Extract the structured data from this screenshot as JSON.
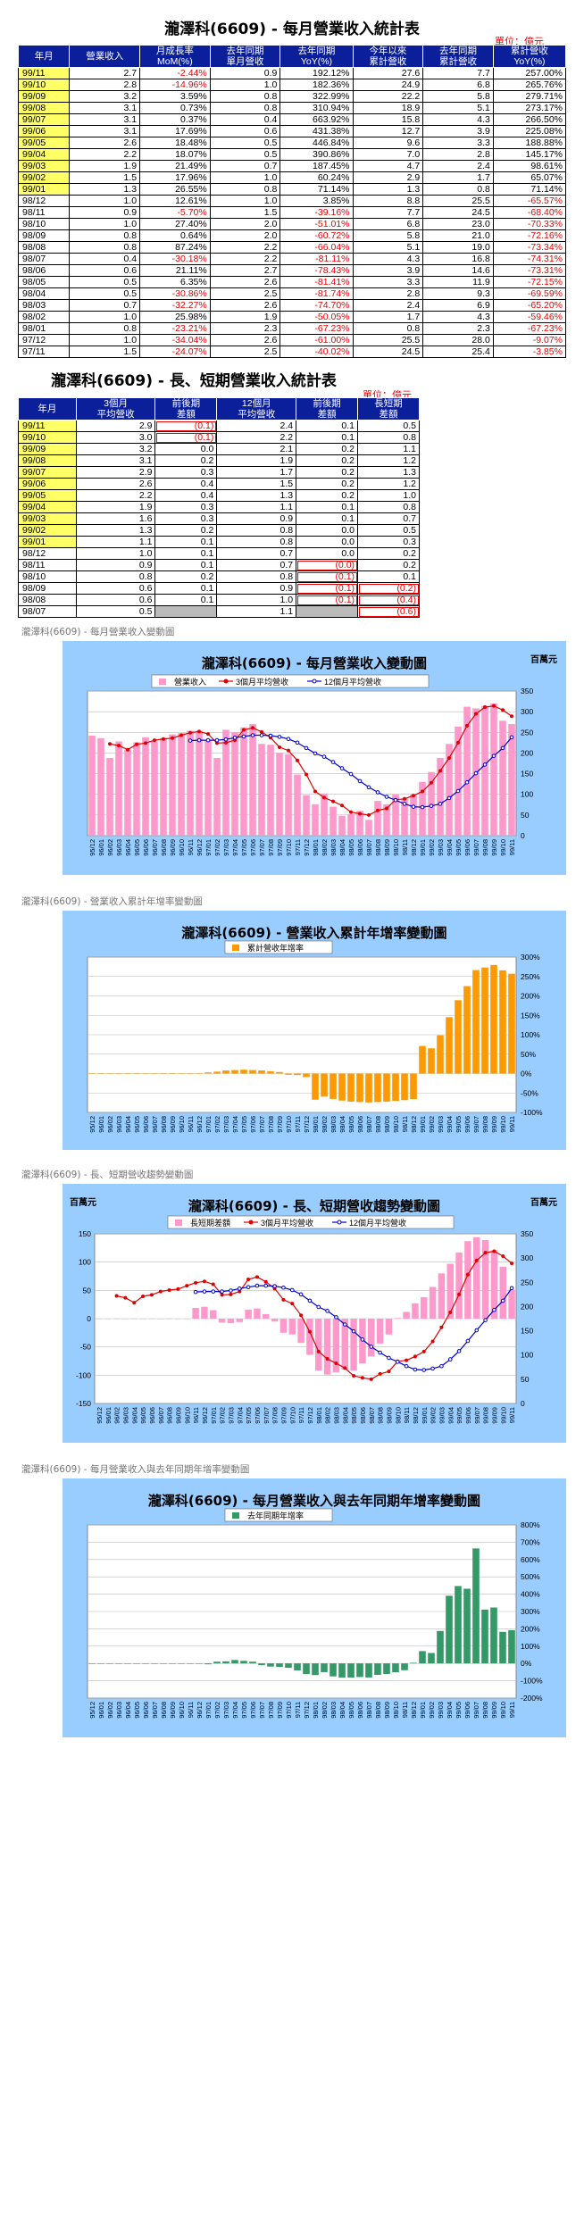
{
  "table1": {
    "title": "瀧澤科(6609) - 每月營業收入統計表",
    "unit": "單位：億元",
    "headers": [
      "年月",
      "營業收入",
      "月成長率\nMoM(%)",
      "去年同期\n單月營收",
      "去年同期\nYoY(%)",
      "今年以來\n累計營收",
      "去年同期\n累計營收",
      "累計營收\nYoY(%)"
    ],
    "rows": [
      [
        "99/11",
        "2.7",
        "-2.44%",
        "0.9",
        "192.12%",
        "27.6",
        "7.7",
        "257.00%"
      ],
      [
        "99/10",
        "2.8",
        "-14.96%",
        "1.0",
        "182.36%",
        "24.9",
        "6.8",
        "265.76%"
      ],
      [
        "99/09",
        "3.2",
        "3.59%",
        "0.8",
        "322.99%",
        "22.2",
        "5.8",
        "279.71%"
      ],
      [
        "99/08",
        "3.1",
        "0.73%",
        "0.8",
        "310.94%",
        "18.9",
        "5.1",
        "273.17%"
      ],
      [
        "99/07",
        "3.1",
        "0.37%",
        "0.4",
        "663.92%",
        "15.8",
        "4.3",
        "266.50%"
      ],
      [
        "99/06",
        "3.1",
        "17.69%",
        "0.6",
        "431.38%",
        "12.7",
        "3.9",
        "225.08%"
      ],
      [
        "99/05",
        "2.6",
        "18.48%",
        "0.5",
        "446.84%",
        "9.6",
        "3.3",
        "188.88%"
      ],
      [
        "99/04",
        "2.2",
        "18.07%",
        "0.5",
        "390.86%",
        "7.0",
        "2.8",
        "145.17%"
      ],
      [
        "99/03",
        "1.9",
        "21.49%",
        "0.7",
        "187.45%",
        "4.7",
        "2.4",
        "98.61%"
      ],
      [
        "99/02",
        "1.5",
        "17.96%",
        "1.0",
        "60.24%",
        "2.9",
        "1.7",
        "65.07%"
      ],
      [
        "99/01",
        "1.3",
        "26.55%",
        "0.8",
        "71.14%",
        "1.3",
        "0.8",
        "71.14%"
      ],
      [
        "98/12",
        "1.0",
        "12.61%",
        "1.0",
        "3.85%",
        "8.8",
        "25.5",
        "-65.57%"
      ],
      [
        "98/11",
        "0.9",
        "-5.70%",
        "1.5",
        "-39.16%",
        "7.7",
        "24.5",
        "-68.40%"
      ],
      [
        "98/10",
        "1.0",
        "27.40%",
        "2.0",
        "-51.01%",
        "6.8",
        "23.0",
        "-70.33%"
      ],
      [
        "98/09",
        "0.8",
        "0.64%",
        "2.0",
        "-60.72%",
        "5.8",
        "21.0",
        "-72.16%"
      ],
      [
        "98/08",
        "0.8",
        "87.24%",
        "2.2",
        "-66.04%",
        "5.1",
        "19.0",
        "-73.34%"
      ],
      [
        "98/07",
        "0.4",
        "-30.18%",
        "2.2",
        "-81.11%",
        "4.3",
        "16.8",
        "-74.31%"
      ],
      [
        "98/06",
        "0.6",
        "21.11%",
        "2.7",
        "-78.43%",
        "3.9",
        "14.6",
        "-73.31%"
      ],
      [
        "98/05",
        "0.5",
        "6.35%",
        "2.6",
        "-81.41%",
        "3.3",
        "11.9",
        "-72.15%"
      ],
      [
        "98/04",
        "0.5",
        "-30.86%",
        "2.5",
        "-81.74%",
        "2.8",
        "9.3",
        "-69.59%"
      ],
      [
        "98/03",
        "0.7",
        "-32.27%",
        "2.6",
        "-74.70%",
        "2.4",
        "6.9",
        "-65.20%"
      ],
      [
        "98/02",
        "1.0",
        "25.98%",
        "1.9",
        "-50.05%",
        "1.7",
        "4.3",
        "-59.46%"
      ],
      [
        "98/01",
        "0.8",
        "-23.21%",
        "2.3",
        "-67.23%",
        "0.8",
        "2.3",
        "-67.23%"
      ],
      [
        "97/12",
        "1.0",
        "-34.04%",
        "2.6",
        "-61.00%",
        "25.5",
        "28.0",
        "-9.07%"
      ],
      [
        "97/11",
        "1.5",
        "-24.07%",
        "2.5",
        "-40.02%",
        "24.5",
        "25.4",
        "-3.85%"
      ]
    ]
  },
  "table2": {
    "title": "瀧澤科(6609) - 長、短期營業收入統計表",
    "unit": "單位：億元",
    "headers": [
      "年月",
      "3個月\n平均營收",
      "前後期\n差額",
      "12個月\n平均營收",
      "前後期\n差額",
      "長短期\n差額"
    ],
    "rows": [
      [
        "99/11",
        "2.9",
        "(0.1)",
        "2.4",
        "0.1",
        "0.5"
      ],
      [
        "99/10",
        "3.0",
        "(0.1)",
        "2.2",
        "0.1",
        "0.8"
      ],
      [
        "99/09",
        "3.2",
        "0.0",
        "2.1",
        "0.2",
        "1.1"
      ],
      [
        "99/08",
        "3.1",
        "0.2",
        "1.9",
        "0.2",
        "1.2"
      ],
      [
        "99/07",
        "2.9",
        "0.3",
        "1.7",
        "0.2",
        "1.3"
      ],
      [
        "99/06",
        "2.6",
        "0.4",
        "1.5",
        "0.2",
        "1.2"
      ],
      [
        "99/05",
        "2.2",
        "0.4",
        "1.3",
        "0.2",
        "1.0"
      ],
      [
        "99/04",
        "1.9",
        "0.3",
        "1.1",
        "0.1",
        "0.8"
      ],
      [
        "99/03",
        "1.6",
        "0.3",
        "0.9",
        "0.1",
        "0.7"
      ],
      [
        "99/02",
        "1.3",
        "0.2",
        "0.8",
        "0.0",
        "0.5"
      ],
      [
        "99/01",
        "1.1",
        "0.1",
        "0.8",
        "0.0",
        "0.3"
      ],
      [
        "98/12",
        "1.0",
        "0.1",
        "0.7",
        "0.0",
        "0.2"
      ],
      [
        "98/11",
        "0.9",
        "0.1",
        "0.7",
        "(0.0)",
        "0.2"
      ],
      [
        "98/10",
        "0.8",
        "0.2",
        "0.8",
        "(0.1)",
        "0.1"
      ],
      [
        "98/09",
        "0.6",
        "0.1",
        "0.9",
        "(0.1)",
        "(0.2)"
      ],
      [
        "98/08",
        "0.6",
        "0.1",
        "1.0",
        "(0.1)",
        "(0.4)"
      ],
      [
        "98/07",
        "0.5",
        "",
        "1.1",
        "",
        "(0.6)"
      ]
    ]
  },
  "section_labels": [
    "瀧澤科(6609) - 每月營業收入變動圖",
    "瀧澤科(6609) - 營業收入累計年增率變動圖",
    "瀧澤科(6609) - 長、短期營收趨勢變動圖",
    "瀧澤科(6609) - 每月營業收入與去年同期年增率變動圖"
  ],
  "chart_data": [
    {
      "type": "bar",
      "title": "瀧澤科(6609) - 每月營業收入變動圖",
      "unit_label": "百萬元",
      "categories": [
        "95/12",
        "96/01",
        "96/02",
        "96/03",
        "96/04",
        "96/05",
        "96/06",
        "96/07",
        "96/08",
        "96/09",
        "96/10",
        "96/11",
        "96/12",
        "97/01",
        "97/02",
        "97/03",
        "97/04",
        "97/05",
        "97/06",
        "97/07",
        "97/08",
        "97/09",
        "97/10",
        "97/11",
        "97/12",
        "98/01",
        "98/02",
        "98/03",
        "98/04",
        "98/05",
        "98/06",
        "98/07",
        "98/08",
        "98/09",
        "98/10",
        "98/11",
        "98/12",
        "99/01",
        "99/02",
        "99/03",
        "99/04",
        "99/05",
        "99/06",
        "99/07",
        "99/08",
        "99/09",
        "99/10",
        "99/11"
      ],
      "series": [
        {
          "name": "營業收入",
          "kind": "bar",
          "color": "#ff99cc",
          "values": [
            242,
            236,
            188,
            228,
            208,
            226,
            238,
            228,
            236,
            245,
            248,
            254,
            254,
            230,
            188,
            256,
            250,
            262,
            270,
            222,
            220,
            200,
            197,
            148,
            98,
            76,
            102,
            70,
            48,
            52,
            60,
            38,
            84,
            76,
            100,
            90,
            100,
            130,
            154,
            188,
            222,
            264,
            312,
            308,
            314,
            320,
            278,
            270
          ]
        },
        {
          "name": "3個月平均營收",
          "kind": "line",
          "color": "#e00000",
          "values": [
            null,
            null,
            222,
            218,
            208,
            221,
            224,
            231,
            234,
            236,
            243,
            249,
            252,
            246,
            224,
            225,
            231,
            256,
            261,
            251,
            237,
            214,
            206,
            182,
            148,
            107,
            92,
            83,
            73,
            57,
            53,
            50,
            61,
            66,
            87,
            89,
            97,
            107,
            128,
            157,
            188,
            225,
            266,
            295,
            311,
            314,
            304,
            289
          ]
        },
        {
          "name": "12個月平均營收",
          "kind": "line",
          "color": "#0000cc",
          "values": [
            null,
            null,
            null,
            null,
            null,
            null,
            null,
            null,
            null,
            null,
            null,
            230,
            231,
            231,
            231,
            233,
            237,
            240,
            243,
            243,
            242,
            239,
            234,
            225,
            212,
            199,
            191,
            178,
            163,
            149,
            132,
            117,
            105,
            94,
            86,
            77,
            70,
            69,
            72,
            77,
            91,
            108,
            129,
            151,
            172,
            193,
            212,
            238
          ]
        }
      ],
      "ylim": [
        0,
        350
      ],
      "yticks": [
        "0",
        "50",
        "100",
        "150",
        "200",
        "250",
        "300",
        "350"
      ],
      "legend": "top"
    },
    {
      "type": "bar",
      "title": "瀧澤科(6609) - 營業收入累計年增率變動圖",
      "categories": [
        "95/12",
        "96/01",
        "96/02",
        "96/03",
        "96/04",
        "96/05",
        "96/06",
        "96/07",
        "96/08",
        "96/09",
        "96/10",
        "96/11",
        "96/12",
        "97/01",
        "97/02",
        "97/03",
        "97/04",
        "97/05",
        "97/06",
        "97/07",
        "97/08",
        "97/09",
        "97/10",
        "97/11",
        "97/12",
        "98/01",
        "98/02",
        "98/03",
        "98/04",
        "98/05",
        "98/06",
        "98/07",
        "98/08",
        "98/09",
        "98/10",
        "98/11",
        "98/12",
        "99/01",
        "99/02",
        "99/03",
        "99/04",
        "99/05",
        "99/06",
        "99/07",
        "99/08",
        "99/09",
        "99/10",
        "99/11"
      ],
      "series": [
        {
          "name": "累計營收年增率",
          "kind": "bar",
          "color": "#ff9900",
          "values": [
            0,
            0,
            0,
            0,
            0,
            0,
            0,
            0,
            0,
            0,
            0,
            0,
            0,
            3,
            5,
            8,
            9,
            10,
            9,
            8,
            6,
            4,
            -3,
            -3.85,
            -9.07,
            -67.23,
            -59.46,
            -65.2,
            -69.59,
            -72.15,
            -73.31,
            -74.31,
            -73.34,
            -72.16,
            -70.33,
            -68.4,
            -65.57,
            71.14,
            65.07,
            98.61,
            145.17,
            188.88,
            225.08,
            266.5,
            273.17,
            279.71,
            265.76,
            257.0
          ]
        }
      ],
      "ylim": [
        -100,
        300
      ],
      "yticks": [
        "-100%",
        "-50%",
        "0%",
        "50%",
        "100%",
        "150%",
        "200%",
        "250%",
        "300%"
      ],
      "legend": "top"
    },
    {
      "type": "bar",
      "title": "瀧澤科(6609) - 長、短期營收趨勢變動圖",
      "unit_label": "百萬元",
      "categories": [
        "95/12",
        "96/01",
        "96/02",
        "96/03",
        "96/04",
        "96/05",
        "96/06",
        "96/07",
        "96/08",
        "96/09",
        "96/10",
        "96/11",
        "96/12",
        "97/01",
        "97/02",
        "97/03",
        "97/04",
        "97/05",
        "97/06",
        "97/07",
        "97/08",
        "97/09",
        "97/10",
        "97/11",
        "97/12",
        "98/01",
        "98/02",
        "98/03",
        "98/04",
        "98/05",
        "98/06",
        "98/07",
        "98/08",
        "98/09",
        "98/10",
        "98/11",
        "98/12",
        "99/01",
        "99/02",
        "99/03",
        "99/04",
        "99/05",
        "99/06",
        "99/07",
        "99/08",
        "99/09",
        "99/10",
        "99/11"
      ],
      "series": [
        {
          "name": "長短期差額",
          "kind": "bar",
          "axis": "left",
          "color": "#ff99cc",
          "values": [
            0,
            0,
            0,
            0,
            0,
            0,
            0,
            0,
            0,
            0,
            0,
            19,
            21,
            15,
            -7,
            -8,
            -6,
            16,
            18,
            8,
            -5,
            -25,
            -28,
            -43,
            -64,
            -92,
            -99,
            -95,
            -90,
            -92,
            -79,
            -67,
            -44,
            -28,
            1,
            12,
            27,
            38,
            56,
            80,
            97,
            117,
            137,
            144,
            139,
            121,
            92,
            51
          ]
        },
        {
          "name": "3個月平均營收",
          "kind": "line",
          "axis": "right",
          "color": "#e00000",
          "values": [
            null,
            null,
            222,
            218,
            208,
            221,
            224,
            231,
            234,
            236,
            243,
            249,
            252,
            246,
            224,
            225,
            231,
            256,
            261,
            251,
            237,
            214,
            206,
            182,
            148,
            107,
            92,
            83,
            73,
            57,
            53,
            50,
            61,
            66,
            87,
            89,
            97,
            107,
            128,
            157,
            188,
            225,
            266,
            295,
            311,
            314,
            304,
            289
          ]
        },
        {
          "name": "12個月平均營收",
          "kind": "line",
          "axis": "right",
          "color": "#0000cc",
          "values": [
            null,
            null,
            null,
            null,
            null,
            null,
            null,
            null,
            null,
            null,
            null,
            230,
            231,
            231,
            231,
            233,
            237,
            240,
            243,
            243,
            242,
            239,
            234,
            225,
            212,
            199,
            191,
            178,
            163,
            149,
            132,
            117,
            105,
            94,
            86,
            77,
            70,
            69,
            72,
            77,
            91,
            108,
            129,
            151,
            172,
            193,
            212,
            238
          ]
        }
      ],
      "ylim_left": [
        -150,
        150
      ],
      "ylim_right": [
        0,
        350
      ],
      "yticks_left": [
        "-150",
        "-100",
        "-50",
        "0",
        "50",
        "100",
        "150"
      ],
      "yticks_right": [
        "0",
        "50",
        "100",
        "150",
        "200",
        "250",
        "300",
        "350"
      ],
      "legend": "top"
    },
    {
      "type": "bar",
      "title": "瀧澤科(6609) - 每月營業收入與去年同期年增率變動圖",
      "categories": [
        "95/12",
        "96/01",
        "96/02",
        "96/03",
        "96/04",
        "96/05",
        "96/06",
        "96/07",
        "96/08",
        "96/09",
        "96/10",
        "96/11",
        "96/12",
        "97/01",
        "97/02",
        "97/03",
        "97/04",
        "97/05",
        "97/06",
        "97/07",
        "97/08",
        "97/09",
        "97/10",
        "97/11",
        "97/12",
        "98/01",
        "98/02",
        "98/03",
        "98/04",
        "98/05",
        "98/06",
        "98/07",
        "98/08",
        "98/09",
        "98/10",
        "98/11",
        "98/12",
        "99/01",
        "99/02",
        "99/03",
        "99/04",
        "99/05",
        "99/06",
        "99/07",
        "99/08",
        "99/09",
        "99/10",
        "99/11"
      ],
      "series": [
        {
          "name": "去年同期年增率",
          "kind": "bar",
          "color": "#339966",
          "values": [
            0,
            0,
            0,
            0,
            0,
            0,
            0,
            0,
            0,
            0,
            0,
            0,
            0,
            -5,
            10,
            12,
            20,
            15,
            10,
            -10,
            -18,
            -20,
            -25,
            -40.02,
            -61.0,
            -67.23,
            -50.05,
            -74.7,
            -81.74,
            -81.41,
            -78.43,
            -81.11,
            -66.04,
            -60.72,
            -51.01,
            -39.16,
            3.85,
            71.14,
            60.24,
            187.45,
            390.86,
            446.84,
            431.38,
            663.92,
            310.94,
            322.99,
            182.36,
            192.12
          ]
        }
      ],
      "ylim": [
        -200,
        800
      ],
      "yticks": [
        "-200%",
        "-100%",
        "0%",
        "100%",
        "200%",
        "300%",
        "400%",
        "500%",
        "600%",
        "700%",
        "800%"
      ],
      "legend": "top"
    }
  ]
}
